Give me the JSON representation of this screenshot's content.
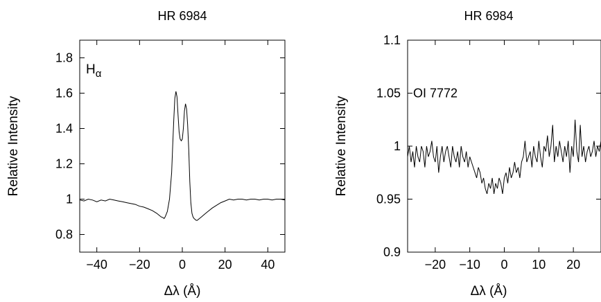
{
  "chart_data": [
    {
      "type": "line",
      "title": "HR 6984",
      "annotation": "H",
      "annotation_sub": "α",
      "xlabel": "Δλ (Å)",
      "ylabel": "Relative Intensity",
      "xlim": [
        -48,
        48
      ],
      "ylim": [
        0.7,
        1.9
      ],
      "xticks": [
        -40,
        -20,
        0,
        20,
        40
      ],
      "xtick_labels": [
        "−40",
        "−20",
        "0",
        "20",
        "40"
      ],
      "yticks": [
        0.8,
        1,
        1.2,
        1.4,
        1.6,
        1.8
      ],
      "ytick_labels": [
        "0.8",
        "1",
        "1.2",
        "1.4",
        "1.6",
        "1.8"
      ],
      "grid": false,
      "series": [
        {
          "x": [
            -48,
            -46,
            -44,
            -42,
            -40,
            -38,
            -36,
            -34,
            -32,
            -30,
            -28,
            -26,
            -24,
            -22,
            -20,
            -18,
            -16,
            -14,
            -12,
            -11,
            -10,
            -9,
            -8.5,
            -8,
            -7,
            -6,
            -5,
            -4.5,
            -4,
            -3.5,
            -3,
            -2.5,
            -2,
            -1.5,
            -1,
            -0.5,
            0,
            0.5,
            1,
            1.5,
            2,
            2.5,
            3,
            3.5,
            4,
            4.5,
            5,
            5.5,
            6,
            6.5,
            7,
            7.5,
            8,
            9,
            10,
            12,
            14,
            16,
            18,
            20,
            22,
            24,
            26,
            28,
            30,
            32,
            34,
            36,
            38,
            40,
            42,
            44,
            46,
            48
          ],
          "y": [
            0.995,
            0.99,
            1.0,
            0.995,
            0.985,
            0.995,
            0.99,
            1.0,
            0.995,
            0.99,
            0.985,
            0.98,
            0.975,
            0.97,
            0.96,
            0.955,
            0.945,
            0.935,
            0.92,
            0.91,
            0.9,
            0.895,
            0.89,
            0.9,
            0.93,
            1.0,
            1.15,
            1.3,
            1.45,
            1.57,
            1.61,
            1.58,
            1.48,
            1.38,
            1.34,
            1.33,
            1.34,
            1.4,
            1.5,
            1.54,
            1.51,
            1.42,
            1.28,
            1.1,
            0.98,
            0.92,
            0.9,
            0.89,
            0.885,
            0.88,
            0.88,
            0.885,
            0.89,
            0.9,
            0.91,
            0.93,
            0.95,
            0.965,
            0.98,
            0.99,
            1.0,
            0.995,
            1.0,
            1.0,
            0.995,
            1.0,
            1.0,
            0.995,
            1.0,
            1.0,
            0.995,
            1.0,
            1.0,
            0.995
          ]
        }
      ]
    },
    {
      "type": "line",
      "title": "HR 6984",
      "annotation": "OI 7772",
      "xlabel": "Δλ (Å)",
      "ylabel": "Relative Intensity",
      "xlim": [
        -28,
        28
      ],
      "ylim": [
        0.9,
        1.1
      ],
      "xticks": [
        -20,
        -10,
        0,
        10,
        20
      ],
      "xtick_labels": [
        "−20",
        "−10",
        "0",
        "10",
        "20"
      ],
      "yticks": [
        0.9,
        0.95,
        1,
        1.05,
        1.1
      ],
      "ytick_labels": [
        "0.9",
        "0.95",
        "1",
        "1.05",
        "1.1"
      ],
      "grid": false,
      "series": [
        {
          "x": [
            -28,
            -27.5,
            -27,
            -26.5,
            -26,
            -25.5,
            -25,
            -24.5,
            -24,
            -23.5,
            -23,
            -22.5,
            -22,
            -21.5,
            -21,
            -20.5,
            -20,
            -19.5,
            -19,
            -18.5,
            -18,
            -17.5,
            -17,
            -16.5,
            -16,
            -15.5,
            -15,
            -14.5,
            -14,
            -13.5,
            -13,
            -12.5,
            -12,
            -11.5,
            -11,
            -10.5,
            -10,
            -9.5,
            -9,
            -8.5,
            -8,
            -7.5,
            -7,
            -6.5,
            -6,
            -5.5,
            -5,
            -4.5,
            -4,
            -3.5,
            -3,
            -2.5,
            -2,
            -1.5,
            -1,
            -0.5,
            0,
            0.5,
            1,
            1.5,
            2,
            2.5,
            3,
            3.5,
            4,
            4.5,
            5,
            5.5,
            6,
            6.5,
            7,
            7.5,
            8,
            8.5,
            9,
            9.5,
            10,
            10.5,
            11,
            11.5,
            12,
            12.5,
            13,
            13.5,
            14,
            14.5,
            15,
            15.5,
            16,
            16.5,
            17,
            17.5,
            18,
            18.5,
            19,
            19.5,
            20,
            20.5,
            21,
            21.5,
            22,
            22.5,
            23,
            23.5,
            24,
            24.5,
            25,
            25.5,
            26,
            26.5,
            27,
            27.5,
            28
          ],
          "y": [
            0.99,
            1.0,
            0.985,
            0.995,
            0.98,
            1.0,
            0.99,
            0.985,
            1.0,
            0.995,
            0.98,
            1.0,
            0.99,
            0.995,
            1.005,
            0.99,
            0.985,
            1.0,
            0.975,
            0.99,
            1.0,
            0.985,
            0.995,
            1.0,
            0.99,
            0.98,
            1.0,
            0.99,
            0.985,
            0.995,
            0.98,
            1.0,
            0.99,
            0.985,
            0.995,
            0.98,
            0.99,
            0.985,
            0.98,
            0.975,
            0.97,
            0.98,
            0.975,
            0.965,
            0.97,
            0.96,
            0.955,
            0.965,
            0.96,
            0.97,
            0.955,
            0.965,
            0.96,
            0.97,
            0.965,
            0.955,
            0.97,
            0.975,
            0.965,
            0.98,
            0.97,
            0.975,
            0.985,
            0.975,
            0.98,
            0.97,
            0.985,
            0.99,
            1.005,
            0.985,
            0.99,
            0.995,
            0.98,
            1.0,
            0.99,
            0.985,
            1.005,
            0.99,
            0.98,
            1.0,
            0.995,
            1.01,
            0.99,
            1.0,
            1.02,
            0.985,
            1.0,
            0.99,
            1.005,
            0.995,
            0.985,
            1.0,
            0.99,
            1.005,
            0.975,
            1.0,
            0.99,
            1.025,
            0.995,
            0.985,
            1.02,
            0.99,
            1.0,
            0.985,
            0.995,
            1.0,
            0.99,
            0.995,
            1.005,
            0.99,
            1.0,
            0.995,
            1.005
          ]
        }
      ]
    }
  ]
}
